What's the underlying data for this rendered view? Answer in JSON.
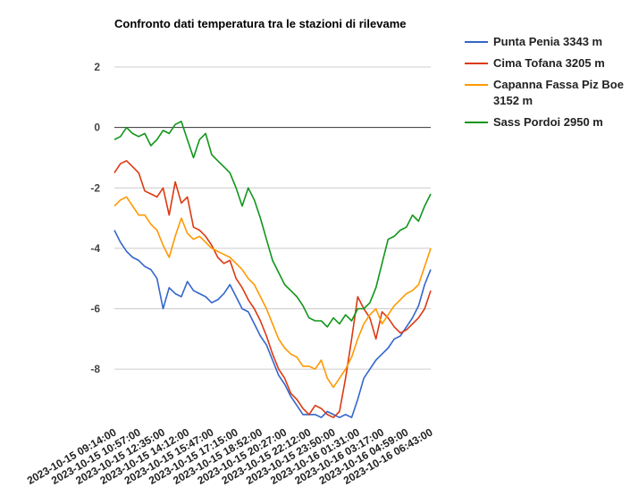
{
  "chart_data": {
    "type": "line",
    "title": "Confronto dati temperatura tra le stazioni di rilevame",
    "categories": [
      "2023-10-15 09:14:00",
      null,
      null,
      null,
      "2023-10-15 10:57:00",
      null,
      null,
      null,
      "2023-10-15 12:35:00",
      null,
      null,
      null,
      "2023-10-15 14:12:00",
      null,
      null,
      null,
      "2023-10-15 15:47:00",
      null,
      null,
      null,
      "2023-10-15 17:15:00",
      null,
      null,
      null,
      "2023-10-15 18:52:00",
      null,
      null,
      null,
      "2023-10-15 20:27:00",
      null,
      null,
      null,
      "2023-10-15 22:12:00",
      null,
      null,
      null,
      "2023-10-15 23:50:00",
      null,
      null,
      null,
      "2023-10-16 01:31:00",
      null,
      null,
      null,
      "2023-10-16 03:17:00",
      null,
      null,
      null,
      "2023-10-16 04:59:00",
      null,
      null,
      null,
      "2023-10-16 06:43:00"
    ],
    "series": [
      {
        "name": "Punta Penia 3343 m",
        "color": "#3366cc",
        "values": [
          -3.4,
          -3.8,
          -4.1,
          -4.3,
          -4.4,
          -4.6,
          -4.7,
          -5.0,
          -6.0,
          -5.3,
          -5.5,
          -5.6,
          -5.1,
          -5.4,
          -5.5,
          -5.6,
          -5.8,
          -5.7,
          -5.5,
          -5.2,
          -5.6,
          -6.0,
          -6.1,
          -6.5,
          -6.9,
          -7.2,
          -7.7,
          -8.2,
          -8.5,
          -8.9,
          -9.2,
          -9.5,
          -9.5,
          -9.5,
          -9.6,
          -9.4,
          -9.5,
          -9.6,
          -9.5,
          -9.6,
          -9.0,
          -8.3,
          -8.0,
          -7.7,
          -7.5,
          -7.3,
          -7.0,
          -6.9,
          -6.6,
          -6.3,
          -5.9,
          -5.2,
          -4.7
        ]
      },
      {
        "name": "Cima Tofana 3205 m",
        "color": "#dc3912",
        "values": [
          -1.5,
          -1.2,
          -1.1,
          -1.3,
          -1.5,
          -2.1,
          -2.2,
          -2.3,
          -2.0,
          -2.9,
          -1.8,
          -2.5,
          -2.3,
          -3.3,
          -3.4,
          -3.6,
          -3.9,
          -4.3,
          -4.5,
          -4.4,
          -5.0,
          -5.3,
          -5.7,
          -6.0,
          -6.4,
          -6.9,
          -7.5,
          -8.0,
          -8.3,
          -8.8,
          -9.0,
          -9.3,
          -9.5,
          -9.2,
          -9.3,
          -9.5,
          -9.6,
          -9.4,
          -8.3,
          -7.0,
          -5.6,
          -6.0,
          -6.3,
          -7.0,
          -6.1,
          -6.3,
          -6.6,
          -6.8,
          -6.7,
          -6.5,
          -6.3,
          -6.0,
          -5.4
        ]
      },
      {
        "name": "Capanna Fassa Piz Boe 3152 m",
        "color": "#ff9900",
        "values": [
          -2.6,
          -2.4,
          -2.3,
          -2.6,
          -2.9,
          -2.9,
          -3.2,
          -3.4,
          -3.9,
          -4.3,
          -3.6,
          -3.0,
          -3.5,
          -3.7,
          -3.6,
          -3.8,
          -4.0,
          -4.1,
          -4.2,
          -4.3,
          -4.5,
          -4.7,
          -5.0,
          -5.2,
          -5.6,
          -6.0,
          -6.5,
          -7.0,
          -7.3,
          -7.5,
          -7.6,
          -7.9,
          -7.9,
          -8.0,
          -7.7,
          -8.3,
          -8.6,
          -8.3,
          -8.0,
          -7.6,
          -7.0,
          -6.5,
          -6.2,
          -6.0,
          -6.5,
          -6.2,
          -5.9,
          -5.7,
          -5.5,
          -5.4,
          -5.2,
          -4.6,
          -4.0
        ]
      },
      {
        "name": "Sass Pordoi 2950 m",
        "color": "#109618",
        "values": [
          -0.4,
          -0.3,
          0,
          -0.2,
          -0.3,
          -0.2,
          -0.6,
          -0.4,
          -0.1,
          -0.2,
          0.1,
          0.2,
          -0.4,
          -1.0,
          -0.4,
          -0.2,
          -0.9,
          -1.1,
          -1.3,
          -1.5,
          -2.0,
          -2.6,
          -2.0,
          -2.4,
          -3.0,
          -3.7,
          -4.4,
          -4.8,
          -5.2,
          -5.4,
          -5.6,
          -5.9,
          -6.3,
          -6.4,
          -6.4,
          -6.6,
          -6.3,
          -6.5,
          -6.2,
          -6.4,
          -6.0,
          -6.0,
          -5.8,
          -5.3,
          -4.5,
          -3.7,
          -3.6,
          -3.4,
          -3.3,
          -2.9,
          -3.1,
          -2.6,
          -2.2
        ]
      }
    ],
    "ylim": [
      -9.8,
      2.8
    ],
    "yticks": [
      -8,
      -6,
      -4,
      -2,
      0,
      2
    ],
    "grid": true,
    "legend": "right"
  }
}
